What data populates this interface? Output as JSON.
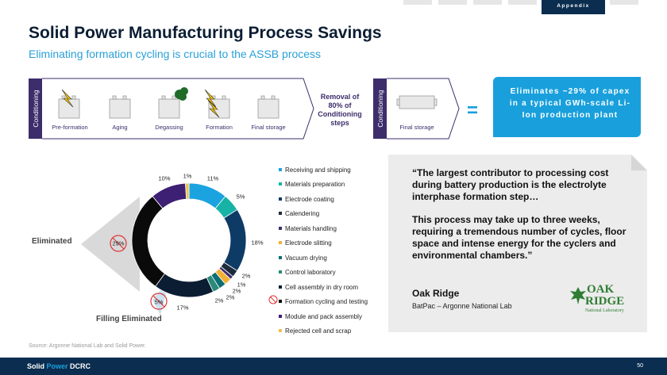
{
  "header": {
    "tab_label": "Appendix"
  },
  "title": "Solid Power Manufacturing Process Savings",
  "subtitle": "Eliminating formation cycling is crucial to the ASSB process",
  "process": {
    "left_label": "Conditioning",
    "steps": [
      "Pre-formation",
      "Aging",
      "Degassing",
      "Formation",
      "Final storage"
    ],
    "removal_text": "Removal of 80% of Conditioning steps",
    "right_label": "Conditioning",
    "right_step": "Final storage",
    "equals": "=",
    "callout": "Eliminates ~29% of capex in a typical GWh-scale Li-Ion production plant"
  },
  "chart_data": {
    "type": "pie",
    "categories": [
      "Receiving and shipping",
      "Materials preparation",
      "Electrode coating",
      "Calendering",
      "Materials handling",
      "Electrode slitting",
      "Vacuum drying",
      "Control laboratory",
      "Cell assembly in dry room",
      "Formation cycling and testing",
      "Module and pack assembly",
      "Rejected cell and scrap"
    ],
    "values": [
      11,
      5,
      18,
      2,
      1,
      2,
      2,
      2,
      17,
      29,
      10,
      1
    ],
    "labels": [
      "11%",
      "5%",
      "18%",
      "2%",
      "1%",
      "2%",
      "2%",
      "2%",
      "17%",
      "29%",
      "10%",
      "1%"
    ],
    "colors": [
      "#1ba3e0",
      "#16b3a6",
      "#0e3a66",
      "#1e2b3d",
      "#3d2d6b",
      "#f2b134",
      "#0d6e73",
      "#2a8a7a",
      "#0b1d33",
      "#0a0a0a",
      "#3d1f73",
      "#f2c14e"
    ],
    "highlight_labels": {
      "eliminated": "Eliminated",
      "filling_eliminated": "Filling Eliminated",
      "filling_pct": "5%"
    },
    "legend_placement": "right"
  },
  "quote": {
    "paragraph1": "“The largest contributor to processing cost during battery production is the electrolyte interphase formation step…",
    "paragraph2": "This process may take up to three weeks, requiring a tremendous number of cycles, floor space and intense energy for the cyclers and environmental chambers.”",
    "attribution_name": "Oak Ridge",
    "attribution_sub": "BatPac – Argonne National Lab",
    "logo_oak": "OAK",
    "logo_ridge": "RIDGE",
    "logo_lab": "National Laboratory"
  },
  "source": "Source: Argonne National Lab and Solid Power.",
  "footer": {
    "brand_prefix": "Solid",
    "brand_power": "Power",
    "brand_suffix": "DCRC",
    "page_number": "50"
  }
}
